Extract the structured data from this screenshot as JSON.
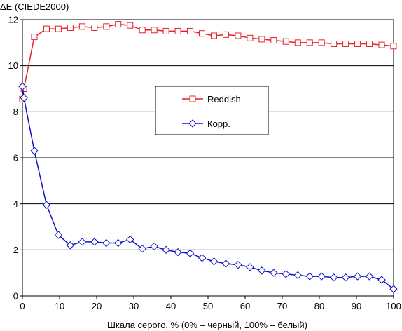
{
  "chart_data": {
    "type": "line",
    "ylabel": "ΔE (CIEDE2000)",
    "xlabel": "Шкала серого, % (0% – черный, 100% – белый)",
    "xlim": [
      0,
      100
    ],
    "ylim": [
      0,
      12
    ],
    "xticks": [
      0,
      10,
      20,
      30,
      40,
      50,
      60,
      70,
      80,
      90,
      100
    ],
    "yticks": [
      0,
      2,
      4,
      6,
      8,
      10,
      12
    ],
    "x_tick_labels": [
      "0",
      "10",
      "20",
      "30",
      "40",
      "50",
      "60",
      "70",
      "80",
      "90",
      "100"
    ],
    "y_tick_labels": [
      "0",
      "2",
      "4",
      "6",
      "8",
      "10",
      "12"
    ],
    "grid": "horizontal",
    "legend_position": "center-right",
    "x": [
      0,
      0.4,
      3.2,
      6.5,
      9.7,
      12.9,
      16.1,
      19.4,
      22.6,
      25.8,
      29.0,
      32.3,
      35.5,
      38.7,
      41.9,
      45.2,
      48.4,
      51.6,
      54.8,
      58.1,
      61.3,
      64.5,
      67.7,
      71.0,
      74.2,
      77.4,
      80.6,
      83.9,
      87.1,
      90.3,
      93.5,
      96.8,
      100
    ],
    "series": [
      {
        "name": "Reddish",
        "color": "#e8202a",
        "marker": "square",
        "values": [
          8.55,
          9.0,
          11.25,
          11.6,
          11.6,
          11.65,
          11.7,
          11.65,
          11.7,
          11.8,
          11.75,
          11.55,
          11.55,
          11.5,
          11.5,
          11.5,
          11.4,
          11.3,
          11.35,
          11.3,
          11.2,
          11.15,
          11.1,
          11.05,
          11.0,
          11.0,
          11.0,
          10.95,
          10.95,
          10.95,
          10.95,
          10.9,
          10.85
        ]
      },
      {
        "name": "Корр.",
        "color": "#1010c8",
        "marker": "diamond",
        "values": [
          9.1,
          8.6,
          6.3,
          3.95,
          2.65,
          2.2,
          2.35,
          2.35,
          2.3,
          2.3,
          2.45,
          2.05,
          2.15,
          2.0,
          1.9,
          1.85,
          1.65,
          1.5,
          1.4,
          1.35,
          1.25,
          1.1,
          1.0,
          0.95,
          0.9,
          0.85,
          0.85,
          0.8,
          0.8,
          0.85,
          0.85,
          0.7,
          0.3
        ]
      }
    ]
  }
}
